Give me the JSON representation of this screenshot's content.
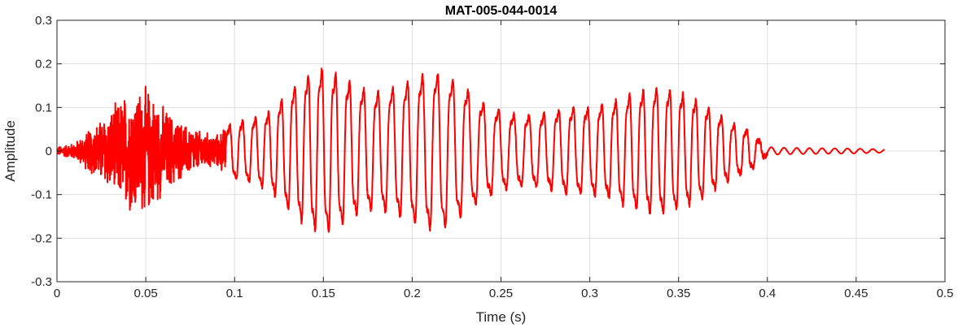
{
  "chart_data": {
    "type": "line",
    "title": "MAT-005-044-0014",
    "xlabel": "Time (s)",
    "ylabel": "Amplitude",
    "xlim": [
      0,
      0.5
    ],
    "ylim": [
      -0.3,
      0.3
    ],
    "grid": true,
    "x_ticks": [
      0,
      0.05,
      0.1,
      0.15,
      0.2,
      0.25,
      0.3,
      0.35,
      0.4,
      0.45,
      0.5
    ],
    "x_tick_labels": [
      "0",
      "0.05",
      "0.1",
      "0.15",
      "0.2",
      "0.25",
      "0.3",
      "0.35",
      "0.4",
      "0.45",
      "0.5"
    ],
    "y_ticks": [
      -0.3,
      -0.2,
      -0.1,
      0,
      0.1,
      0.2,
      0.3
    ],
    "y_tick_labels": [
      "-0.3",
      "-0.2",
      "-0.1",
      "0",
      "0.1",
      "0.2",
      "0.3"
    ],
    "series": [
      {
        "color": "#ff0000",
        "duration": 0.466,
        "envelope": [
          [
            0.0,
            0.01
          ],
          [
            0.01,
            0.02
          ],
          [
            0.02,
            0.06
          ],
          [
            0.03,
            0.1
          ],
          [
            0.04,
            0.15
          ],
          [
            0.05,
            0.16
          ],
          [
            0.06,
            0.11
          ],
          [
            0.07,
            0.07
          ],
          [
            0.08,
            0.05
          ],
          [
            0.09,
            0.04
          ],
          [
            0.095,
            0.06
          ],
          [
            0.1,
            0.07
          ],
          [
            0.11,
            0.08
          ],
          [
            0.12,
            0.1
          ],
          [
            0.13,
            0.15
          ],
          [
            0.14,
            0.19
          ],
          [
            0.15,
            0.21
          ],
          [
            0.16,
            0.19
          ],
          [
            0.17,
            0.16
          ],
          [
            0.18,
            0.15
          ],
          [
            0.19,
            0.16
          ],
          [
            0.2,
            0.18
          ],
          [
            0.21,
            0.2
          ],
          [
            0.22,
            0.19
          ],
          [
            0.23,
            0.16
          ],
          [
            0.24,
            0.12
          ],
          [
            0.25,
            0.1
          ],
          [
            0.26,
            0.09
          ],
          [
            0.27,
            0.09
          ],
          [
            0.28,
            0.1
          ],
          [
            0.29,
            0.11
          ],
          [
            0.3,
            0.11
          ],
          [
            0.31,
            0.12
          ],
          [
            0.32,
            0.14
          ],
          [
            0.33,
            0.155
          ],
          [
            0.34,
            0.16
          ],
          [
            0.35,
            0.15
          ],
          [
            0.36,
            0.13
          ],
          [
            0.37,
            0.1
          ],
          [
            0.38,
            0.07
          ],
          [
            0.39,
            0.05
          ],
          [
            0.395,
            0.03
          ],
          [
            0.4,
            0.01
          ],
          [
            0.41,
            0.008
          ],
          [
            0.45,
            0.006
          ],
          [
            0.466,
            0.004
          ]
        ]
      }
    ]
  }
}
